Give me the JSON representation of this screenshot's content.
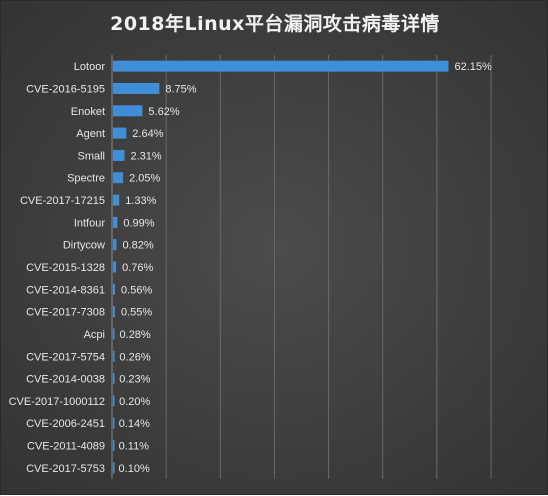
{
  "title": "2018年Linux平台漏洞攻击病毒详情",
  "chart_data": {
    "type": "bar",
    "orientation": "horizontal",
    "title": "2018年Linux平台漏洞攻击病毒详情",
    "xlabel": "",
    "ylabel": "",
    "xlim": [
      0,
      70
    ],
    "grid": true,
    "legend": "none",
    "bar_color": "#3e8fd8",
    "value_suffix": "%",
    "categories": [
      "Lotoor",
      "CVE-2016-5195",
      "Enoket",
      "Agent",
      "Small",
      "Spectre",
      "CVE-2017-17215",
      "Intfour",
      "Dirtycow",
      "CVE-2015-1328",
      "CVE-2014-8361",
      "CVE-2017-7308",
      "Acpi",
      "CVE-2017-5754",
      "CVE-2014-0038",
      "CVE-2017-1000112",
      "CVE-2006-2451",
      "CVE-2011-4089",
      "CVE-2017-5753"
    ],
    "values": [
      62.15,
      8.75,
      5.62,
      2.64,
      2.31,
      2.05,
      1.33,
      0.99,
      0.82,
      0.76,
      0.56,
      0.55,
      0.28,
      0.26,
      0.23,
      0.2,
      0.14,
      0.11,
      0.1
    ],
    "data_labels": [
      "62.15%",
      "8.75%",
      "5.62%",
      "2.64%",
      "2.31%",
      "2.05%",
      "1.33%",
      "0.99%",
      "0.82%",
      "0.76%",
      "0.56%",
      "0.55%",
      "0.28%",
      "0.26%",
      "0.23%",
      "0.20%",
      "0.14%",
      "0.11%",
      "0.10%"
    ]
  }
}
